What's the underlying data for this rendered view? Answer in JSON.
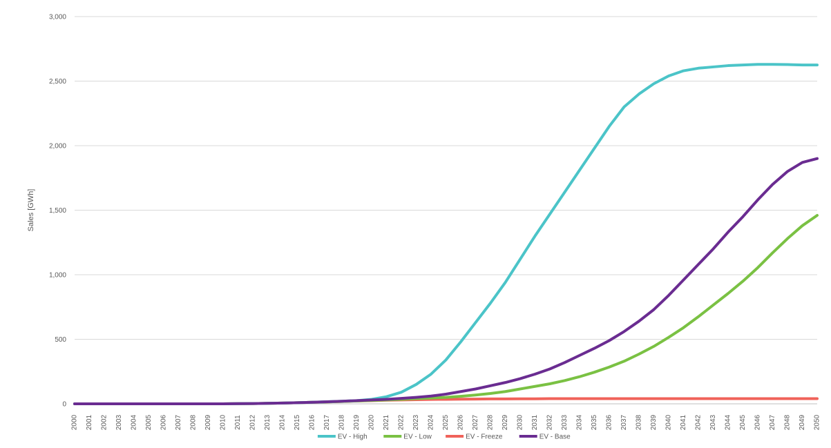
{
  "chart_data": {
    "type": "line",
    "title": "",
    "xlabel": "",
    "ylabel": "Sales [GWh]",
    "ylim": [
      0,
      3000
    ],
    "yticks": [
      0,
      500,
      1000,
      1500,
      2000,
      2500,
      3000
    ],
    "ytick_labels": [
      "0",
      "500",
      "1,000",
      "1,500",
      "2,000",
      "2,500",
      "3,000"
    ],
    "grid": "horizontal",
    "legend_position": "bottom",
    "x": [
      "2000",
      "2001",
      "2002",
      "2003",
      "2004",
      "2005",
      "2006",
      "2007",
      "2008",
      "2009",
      "2010",
      "2011",
      "2012",
      "2013",
      "2014",
      "2015",
      "2016",
      "2017",
      "2018",
      "2019",
      "2020",
      "2021",
      "2022",
      "2023",
      "2024",
      "2025",
      "2026",
      "2027",
      "2028",
      "2029",
      "2030",
      "2031",
      "2032",
      "2033",
      "2034",
      "2035",
      "2036",
      "2037",
      "2038",
      "2039",
      "2040",
      "2041",
      "2042",
      "2043",
      "2044",
      "2045",
      "2046",
      "2047",
      "2048",
      "2049",
      "2050"
    ],
    "series": [
      {
        "name": "EV - High",
        "color": "#4BC4C8",
        "values": [
          0,
          0,
          0,
          0,
          0,
          0,
          0,
          0,
          0,
          0,
          0,
          1,
          2,
          4,
          6,
          9,
          12,
          16,
          20,
          25,
          35,
          55,
          90,
          150,
          230,
          340,
          480,
          630,
          780,
          940,
          1120,
          1300,
          1470,
          1640,
          1810,
          1980,
          2150,
          2300,
          2400,
          2480,
          2540,
          2580,
          2600,
          2610,
          2620,
          2625,
          2630,
          2630,
          2628,
          2625,
          2625
        ]
      },
      {
        "name": "EV - Low",
        "color": "#7AC143",
        "values": [
          0,
          0,
          0,
          0,
          0,
          0,
          0,
          0,
          0,
          0,
          0,
          1,
          2,
          4,
          6,
          9,
          12,
          15,
          18,
          22,
          26,
          30,
          35,
          40,
          45,
          50,
          58,
          68,
          80,
          95,
          115,
          135,
          155,
          180,
          210,
          245,
          285,
          330,
          385,
          445,
          515,
          590,
          675,
          765,
          855,
          950,
          1055,
          1170,
          1280,
          1380,
          1460
        ]
      },
      {
        "name": "EV - Freeze",
        "color": "#F0625A",
        "values": [
          0,
          0,
          0,
          0,
          0,
          0,
          0,
          0,
          0,
          0,
          0,
          1,
          2,
          4,
          6,
          9,
          12,
          15,
          18,
          22,
          25,
          28,
          30,
          32,
          34,
          35,
          36,
          37,
          38,
          38,
          39,
          39,
          40,
          40,
          40,
          40,
          40,
          40,
          40,
          40,
          40,
          40,
          40,
          40,
          40,
          40,
          40,
          40,
          40,
          40,
          40
        ]
      },
      {
        "name": "EV - Base",
        "color": "#6A2C91",
        "values": [
          0,
          0,
          0,
          0,
          0,
          0,
          0,
          0,
          0,
          0,
          0,
          1,
          2,
          4,
          6,
          9,
          12,
          16,
          20,
          25,
          30,
          35,
          42,
          50,
          60,
          75,
          95,
          115,
          140,
          165,
          195,
          230,
          270,
          320,
          375,
          430,
          490,
          560,
          640,
          730,
          840,
          960,
          1080,
          1200,
          1330,
          1450,
          1580,
          1700,
          1800,
          1870,
          1900
        ]
      }
    ]
  }
}
